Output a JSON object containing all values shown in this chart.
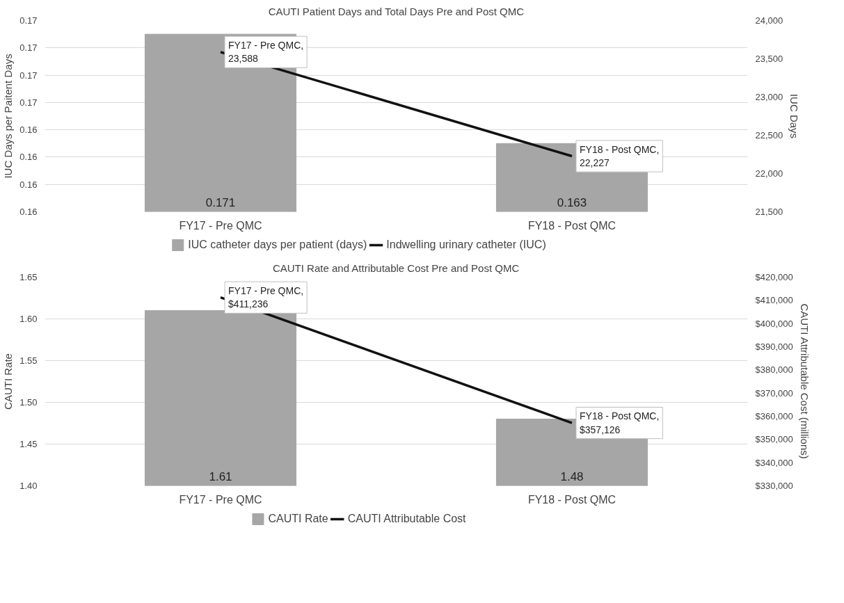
{
  "chart_data": [
    {
      "type": "bar",
      "title": "CAUTI Patient Days and Total Days Pre and Post QMC",
      "ylabel": "IUC Days per Paitent Days",
      "y2label": "IUC Days",
      "categories": [
        "FY17 - Pre QMC",
        "FY18 - Post QMC"
      ],
      "series": [
        {
          "name": "IUC catheter days per patient (days)",
          "color": "#a6a6a6",
          "values": [
            0.171,
            0.163
          ],
          "value_labels": [
            "0.171",
            "0.163"
          ]
        },
        {
          "name": "Indwelling urinary catheter (IUC)",
          "type": "line",
          "axis": "y2",
          "color": "#111111",
          "values": [
            23588,
            22227
          ],
          "value_labels": [
            "FY17 - Pre QMC, 23,588",
            "FY18 - Post QMC, 22,227"
          ]
        }
      ],
      "ylim": [
        0.158,
        0.172
      ],
      "yticks": [
        {
          "value": 0.158,
          "label": "0.16"
        },
        {
          "value": 0.16,
          "label": "0.16"
        },
        {
          "value": 0.162,
          "label": "0.16"
        },
        {
          "value": 0.164,
          "label": "0.16"
        },
        {
          "value": 0.166,
          "label": "0.17"
        },
        {
          "value": 0.168,
          "label": "0.17"
        },
        {
          "value": 0.17,
          "label": "0.17"
        },
        {
          "value": 0.172,
          "label": "0.17"
        }
      ],
      "y2lim": [
        21500,
        24000
      ],
      "y2ticks": [
        {
          "value": 21500,
          "label": "21,500"
        },
        {
          "value": 22000,
          "label": "22,000"
        },
        {
          "value": 22500,
          "label": "22,500"
        },
        {
          "value": 23000,
          "label": "23,000"
        },
        {
          "value": 23500,
          "label": "23,500"
        },
        {
          "value": 24000,
          "label": "24,000"
        }
      ],
      "grid": "y",
      "legend": "bottom"
    },
    {
      "type": "bar",
      "title": "CAUTI Rate and Attributable Cost Pre and Post QMC",
      "ylabel": "CAUTI Rate",
      "y2label": "CAUTI Attributable Cost (millions)",
      "categories": [
        "FY17 - Pre QMC",
        "FY18 - Post QMC"
      ],
      "series": [
        {
          "name": "CAUTI Rate",
          "color": "#a6a6a6",
          "values": [
            1.61,
            1.48
          ],
          "value_labels": [
            "1.61",
            "1.48"
          ]
        },
        {
          "name": "CAUTI Attributable Cost",
          "type": "line",
          "axis": "y2",
          "color": "#111111",
          "values": [
            411236,
            357126
          ],
          "value_labels": [
            "FY17 - Pre QMC, $411,236",
            "FY18 - Post QMC, $357,126"
          ]
        }
      ],
      "ylim": [
        1.4,
        1.65
      ],
      "yticks": [
        {
          "value": 1.4,
          "label": "1.40"
        },
        {
          "value": 1.45,
          "label": "1.45"
        },
        {
          "value": 1.5,
          "label": "1.50"
        },
        {
          "value": 1.55,
          "label": "1.55"
        },
        {
          "value": 1.6,
          "label": "1.60"
        },
        {
          "value": 1.65,
          "label": "1.65"
        }
      ],
      "y2lim": [
        330000,
        420000
      ],
      "y2ticks": [
        {
          "value": 330000,
          "label": "$330,000"
        },
        {
          "value": 340000,
          "label": "$340,000"
        },
        {
          "value": 350000,
          "label": "$350,000"
        },
        {
          "value": 360000,
          "label": "$360,000"
        },
        {
          "value": 370000,
          "label": "$370,000"
        },
        {
          "value": 380000,
          "label": "$380,000"
        },
        {
          "value": 390000,
          "label": "$390,000"
        },
        {
          "value": 400000,
          "label": "$400,000"
        },
        {
          "value": 410000,
          "label": "$410,000"
        },
        {
          "value": 420000,
          "label": "$420,000"
        }
      ],
      "grid": "y",
      "legend": "bottom"
    }
  ]
}
